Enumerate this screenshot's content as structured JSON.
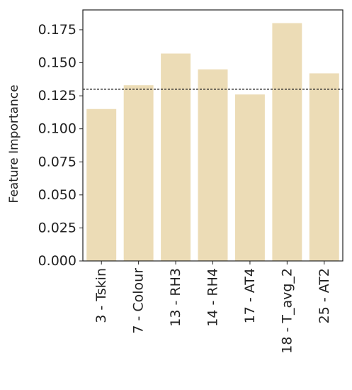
{
  "chart_data": {
    "type": "bar",
    "categories": [
      "3 - Tskin",
      "7 - Colour",
      "13 - RH3",
      "14 - RH4",
      "17 - AT4",
      "18 - T_avg_2",
      "25 - AT2"
    ],
    "values": [
      0.115,
      0.133,
      0.157,
      0.145,
      0.126,
      0.18,
      0.142
    ],
    "title": "",
    "xlabel": "",
    "ylabel": "Feature Importance",
    "ylim": [
      0,
      0.19
    ],
    "yticks": [
      "0.000",
      "0.025",
      "0.050",
      "0.075",
      "0.100",
      "0.125",
      "0.150",
      "0.175"
    ],
    "reference_line": 0.13,
    "grid": false,
    "colors": {
      "bar": "#ecdcb6",
      "reference_line": "#222222",
      "axis": "#222222"
    }
  }
}
